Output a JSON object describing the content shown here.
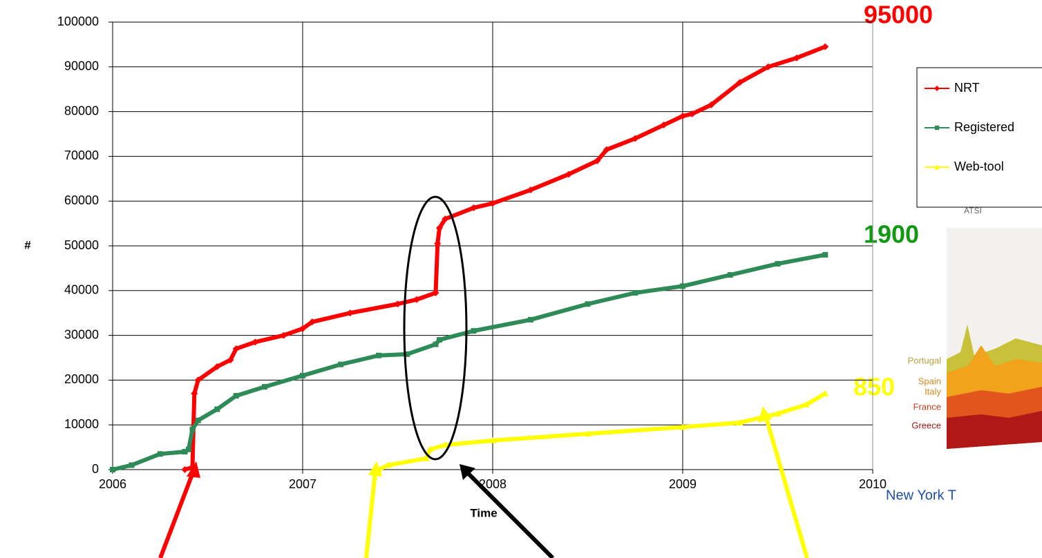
{
  "chart_data": {
    "type": "line",
    "x_label": "Time",
    "y_label": "#",
    "xlim": [
      2006,
      2010
    ],
    "xticks": [
      2006,
      2007,
      2008,
      2009,
      2010
    ],
    "ylim": [
      0,
      100000
    ],
    "yticks": [
      0,
      10000,
      20000,
      30000,
      40000,
      50000,
      60000,
      70000,
      80000,
      90000,
      100000
    ],
    "grid": true,
    "series": [
      {
        "name": "NRT",
        "color": "#ff0000",
        "marker": "diamond",
        "x": [
          2006.38,
          2006.42,
          2006.43,
          2006.45,
          2006.55,
          2006.62,
          2006.65,
          2006.75,
          2006.9,
          2007.0,
          2007.05,
          2007.25,
          2007.5,
          2007.6,
          2007.7,
          2007.71,
          2007.72,
          2007.75,
          2007.9,
          2008.0,
          2008.2,
          2008.4,
          2008.55,
          2008.6,
          2008.75,
          2008.9,
          2009.0,
          2009.05,
          2009.15,
          2009.3,
          2009.45,
          2009.6,
          2009.75
        ],
        "values": [
          0,
          500,
          17000,
          20000,
          23000,
          24500,
          27000,
          28500,
          30000,
          31500,
          33000,
          35000,
          37000,
          38000,
          39500,
          50500,
          54000,
          56000,
          58500,
          59500,
          62500,
          66000,
          69000,
          71500,
          74000,
          77000,
          79000,
          79500,
          81500,
          86500,
          90000,
          92000,
          94500
        ]
      },
      {
        "name": "Registered",
        "color": "#2e8b57",
        "marker": "square",
        "x": [
          2006.0,
          2006.1,
          2006.25,
          2006.38,
          2006.4,
          2006.42,
          2006.45,
          2006.55,
          2006.65,
          2006.8,
          2007.0,
          2007.2,
          2007.4,
          2007.55,
          2007.7,
          2007.72,
          2007.9,
          2008.2,
          2008.5,
          2008.75,
          2009.0,
          2009.25,
          2009.5,
          2009.75
        ],
        "values": [
          0,
          1000,
          3500,
          4000,
          4500,
          9000,
          11000,
          13500,
          16500,
          18500,
          21000,
          23500,
          25500,
          25800,
          28000,
          29000,
          31000,
          33500,
          37000,
          39500,
          41000,
          43500,
          46000,
          48000
        ]
      },
      {
        "name": "Web-tool",
        "color": "#ffff00",
        "marker": "triangle",
        "x": [
          2007.4,
          2007.45,
          2007.65,
          2007.67,
          2007.75,
          2008.0,
          2008.5,
          2009.0,
          2009.3,
          2009.5,
          2009.65,
          2009.75
        ],
        "values": [
          0,
          1000,
          2500,
          4500,
          5500,
          6500,
          8000,
          9500,
          10500,
          12500,
          14500,
          17000
        ]
      }
    ],
    "annotations": [
      {
        "text": "95000",
        "color": "#ff0000"
      },
      {
        "text": "1900",
        "color": "#119911"
      },
      {
        "text": "850",
        "color": "#ffff00"
      }
    ]
  },
  "inset": {
    "title": "ATSI",
    "labels": [
      "Portugal",
      "Spain",
      "Italy",
      "France",
      "Greece"
    ],
    "caption": "New York T"
  }
}
